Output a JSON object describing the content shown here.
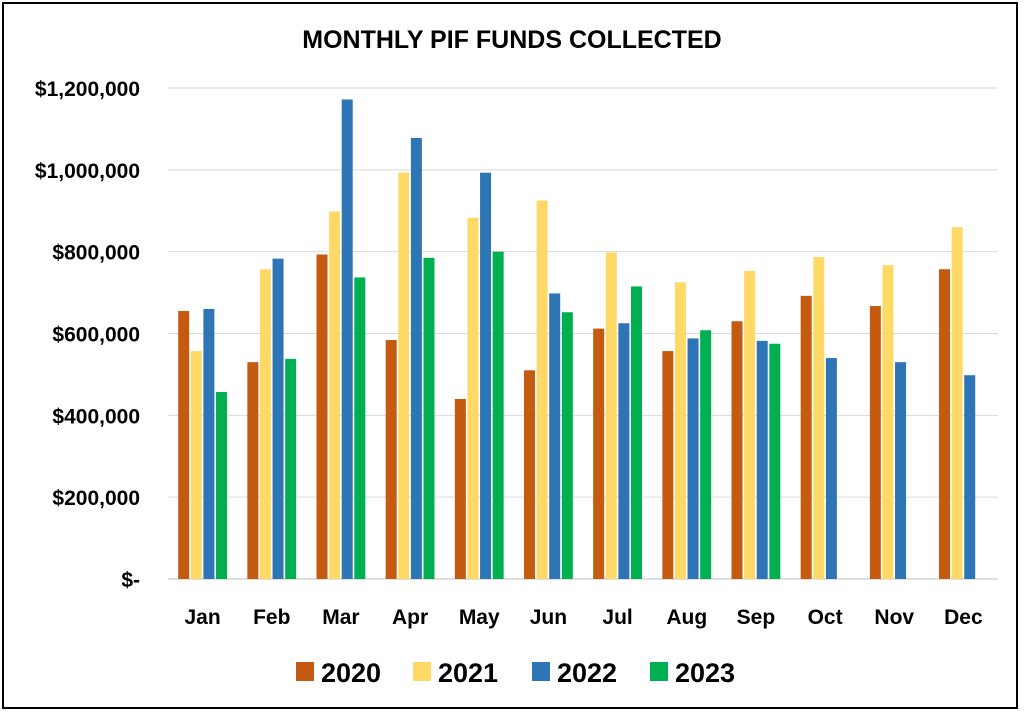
{
  "chart_data": {
    "type": "bar",
    "title": "MONTHLY PIF FUNDS COLLECTED",
    "xlabel": "",
    "ylabel": "",
    "categories": [
      "Jan",
      "Feb",
      "Mar",
      "Apr",
      "May",
      "Jun",
      "Jul",
      "Aug",
      "Sep",
      "Oct",
      "Nov",
      "Dec"
    ],
    "ylim": [
      0,
      1200000
    ],
    "y_ticks": [
      0,
      200000,
      400000,
      600000,
      800000,
      1000000,
      1200000
    ],
    "y_tick_labels": [
      "$-",
      "$200,000",
      "$400,000",
      "$600,000",
      "$800,000",
      "$1,000,000",
      "$1,200,000"
    ],
    "grid": true,
    "legend_position": "bottom",
    "series": [
      {
        "name": "2020",
        "color": "#C55A11",
        "values": [
          655000,
          530000,
          793000,
          584000,
          440000,
          510000,
          612000,
          557000,
          630000,
          692000,
          667000,
          757000
        ]
      },
      {
        "name": "2021",
        "color": "#FFD966",
        "values": [
          557000,
          757000,
          898000,
          993000,
          883000,
          925000,
          798000,
          725000,
          753000,
          787000,
          767000,
          860000
        ]
      },
      {
        "name": "2022",
        "color": "#2E75B6",
        "values": [
          660000,
          783000,
          1172000,
          1078000,
          993000,
          698000,
          625000,
          588000,
          582000,
          540000,
          530000,
          498000
        ]
      },
      {
        "name": "2023",
        "color": "#00B050",
        "values": [
          457000,
          538000,
          737000,
          785000,
          800000,
          652000,
          715000,
          608000,
          575000,
          null,
          null,
          null
        ]
      }
    ]
  }
}
